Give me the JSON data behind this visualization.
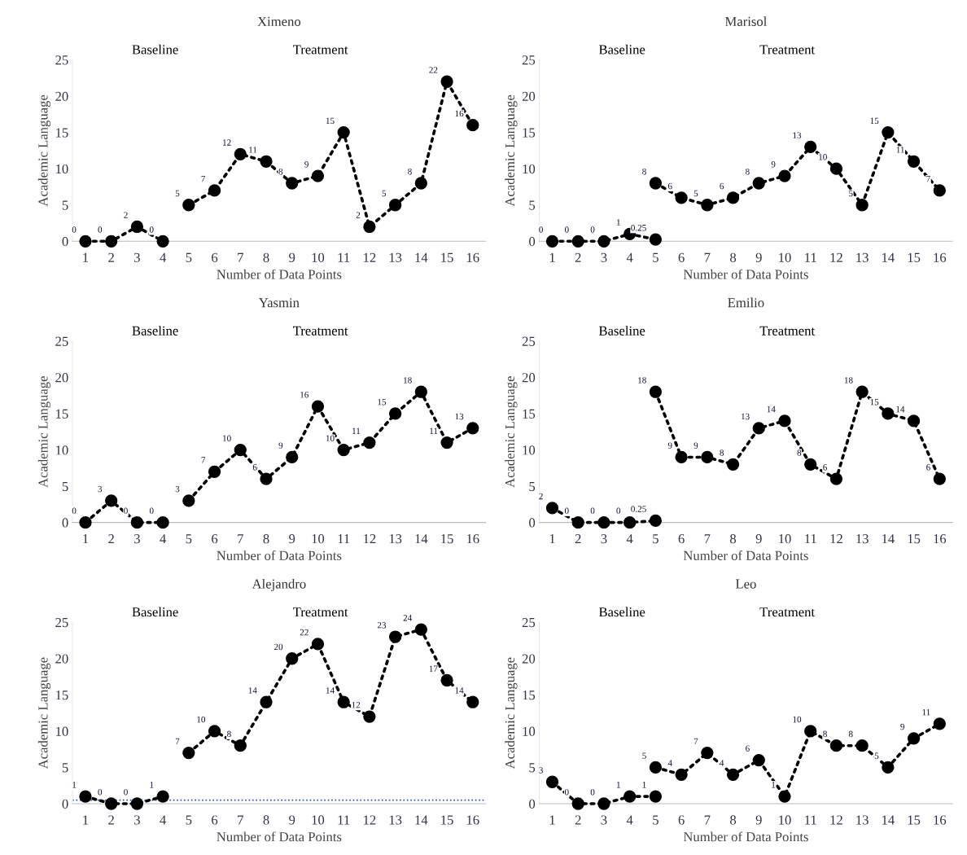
{
  "chart_data": [
    {
      "type": "line",
      "title": "Ximeno",
      "xlabel": "Number of Data Points",
      "ylabel": "Academic Language",
      "xlim": [
        0.5,
        16.5
      ],
      "xticks": [
        1,
        2,
        3,
        4,
        5,
        6,
        7,
        8,
        9,
        10,
        11,
        12,
        13,
        14,
        15,
        16
      ],
      "ylim": [
        0,
        25
      ],
      "yticks": [
        0,
        5,
        10,
        15,
        20,
        25
      ],
      "grid": false,
      "marker": "circle",
      "line_style": "dotted",
      "annotations": [
        "Baseline",
        "Treatment"
      ],
      "series": [
        {
          "color": "#000000",
          "x": [
            1,
            2,
            3,
            4
          ],
          "values": [
            0,
            0,
            2,
            0
          ],
          "value_labels": [
            "0",
            "0",
            "2",
            "0"
          ]
        },
        {
          "color": "#000000",
          "x": [
            5,
            6,
            7,
            8,
            9,
            10,
            11,
            12,
            13,
            14,
            15,
            16
          ],
          "values": [
            5,
            7,
            12,
            11,
            8,
            9,
            15,
            2,
            5,
            8,
            22,
            16
          ],
          "value_labels": [
            "5",
            "7",
            "12",
            "11",
            "8",
            "9",
            "15",
            "2",
            "5",
            "8",
            "22",
            "16"
          ]
        }
      ]
    },
    {
      "type": "line",
      "title": "Marisol",
      "xlabel": "Number of Data Points",
      "ylabel": "Academic Language",
      "xlim": [
        0.5,
        16.5
      ],
      "xticks": [
        1,
        2,
        3,
        4,
        5,
        6,
        7,
        8,
        9,
        10,
        11,
        12,
        13,
        14,
        15,
        16
      ],
      "ylim": [
        0,
        25
      ],
      "yticks": [
        0,
        5,
        10,
        15,
        20,
        25
      ],
      "grid": false,
      "marker": "circle",
      "line_style": "dotted",
      "annotations": [
        "Baseline",
        "Treatment"
      ],
      "series": [
        {
          "color": "#000000",
          "x": [
            1,
            2,
            3,
            4,
            5
          ],
          "values": [
            0,
            0,
            0,
            1,
            0.25
          ],
          "value_labels": [
            "0",
            "0",
            "0",
            "1",
            "0.25"
          ]
        },
        {
          "color": "#000000",
          "x": [
            5,
            6,
            7,
            8,
            9,
            10,
            11,
            12,
            13,
            14,
            15,
            16
          ],
          "values": [
            8,
            6,
            5,
            6,
            8,
            9,
            13,
            10,
            5,
            15,
            11,
            7
          ],
          "value_labels": [
            "8",
            "6",
            "5",
            "6",
            "8",
            "9",
            "13",
            "10",
            "5",
            "15",
            "11",
            "7"
          ]
        }
      ]
    },
    {
      "type": "line",
      "title": "Yasmin",
      "xlabel": "Number of Data Points",
      "ylabel": "Academic Language",
      "xlim": [
        0.5,
        16.5
      ],
      "xticks": [
        1,
        2,
        3,
        4,
        5,
        6,
        7,
        8,
        9,
        10,
        11,
        12,
        13,
        14,
        15,
        16
      ],
      "ylim": [
        0,
        25
      ],
      "yticks": [
        0,
        5,
        10,
        15,
        20,
        25
      ],
      "grid": false,
      "marker": "circle",
      "line_style": "dotted",
      "annotations": [
        "Baseline",
        "Treatment"
      ],
      "series": [
        {
          "color": "#000000",
          "x": [
            1,
            2,
            3,
            4
          ],
          "values": [
            0,
            3,
            0,
            0
          ],
          "value_labels": [
            "0",
            "3",
            "0",
            "0"
          ]
        },
        {
          "color": "#000000",
          "x": [
            5,
            6,
            7,
            8,
            9,
            10,
            11,
            12,
            13,
            14,
            15,
            16
          ],
          "values": [
            3,
            7,
            10,
            6,
            9,
            16,
            10,
            11,
            15,
            18,
            11,
            13
          ],
          "value_labels": [
            "3",
            "7",
            "10",
            "6",
            "9",
            "16",
            "10",
            "11",
            "15",
            "18",
            "11",
            "13"
          ]
        }
      ]
    },
    {
      "type": "line",
      "title": "Emilio",
      "xlabel": "Number of Data Points",
      "ylabel": "Academic Language",
      "xlim": [
        0.5,
        16.5
      ],
      "xticks": [
        1,
        2,
        3,
        4,
        5,
        6,
        7,
        8,
        9,
        10,
        11,
        12,
        13,
        14,
        15,
        16
      ],
      "ylim": [
        0,
        25
      ],
      "yticks": [
        0,
        5,
        10,
        15,
        20,
        25
      ],
      "grid": false,
      "marker": "circle",
      "line_style": "dotted",
      "annotations": [
        "Baseline",
        "Treatment"
      ],
      "series": [
        {
          "color": "#000000",
          "x": [
            1,
            2,
            3,
            4,
            5
          ],
          "values": [
            2,
            0,
            0,
            0,
            0.25
          ],
          "value_labels": [
            "2",
            "0",
            "0",
            "0",
            "0.25"
          ]
        },
        {
          "color": "#000000",
          "x": [
            5,
            6,
            7,
            8,
            9,
            10,
            11,
            12,
            13,
            14,
            15,
            16
          ],
          "values": [
            18,
            9,
            9,
            8,
            13,
            14,
            8,
            6,
            18,
            15,
            14,
            6
          ],
          "value_labels": [
            "18",
            "9",
            "9",
            "8",
            "13",
            "14",
            "8",
            "6",
            "18",
            "15",
            "14",
            "6"
          ]
        }
      ]
    },
    {
      "type": "line",
      "title": "Alejandro",
      "xlabel": "Number of Data Points",
      "ylabel": "Academic Language",
      "xlim": [
        0.5,
        16.5
      ],
      "xticks": [
        1,
        2,
        3,
        4,
        5,
        6,
        7,
        8,
        9,
        10,
        11,
        12,
        13,
        14,
        15,
        16
      ],
      "ylim": [
        0,
        25
      ],
      "yticks": [
        0,
        5,
        10,
        15,
        20,
        25
      ],
      "grid": false,
      "marker": "circle",
      "line_style": "dotted",
      "annotations": [
        "Baseline",
        "Treatment"
      ],
      "ref_lines": [
        {
          "axis": "y",
          "value": 0.5,
          "color": "#2f4fb0",
          "line_style": "dotted"
        }
      ],
      "series": [
        {
          "color": "#000000",
          "x": [
            1,
            2,
            3,
            4
          ],
          "values": [
            1,
            0,
            0,
            1
          ],
          "value_labels": [
            "1",
            "0",
            "0",
            "1"
          ]
        },
        {
          "color": "#000000",
          "x": [
            5,
            6,
            7,
            8,
            9,
            10,
            11,
            12,
            13,
            14,
            15,
            16
          ],
          "values": [
            7,
            10,
            8,
            14,
            20,
            22,
            14,
            12,
            23,
            24,
            17,
            14
          ],
          "value_labels": [
            "7",
            "10",
            "8",
            "14",
            "20",
            "22",
            "14",
            "12",
            "23",
            "24",
            "17",
            "14"
          ]
        }
      ]
    },
    {
      "type": "line",
      "title": "Leo",
      "xlabel": "Number of Data Points",
      "ylabel": "Academic Language",
      "xlim": [
        0.5,
        16.5
      ],
      "xticks": [
        1,
        2,
        3,
        4,
        5,
        6,
        7,
        8,
        9,
        10,
        11,
        12,
        13,
        14,
        15,
        16
      ],
      "ylim": [
        0,
        25
      ],
      "yticks": [
        0,
        5,
        10,
        15,
        20,
        25
      ],
      "grid": false,
      "marker": "circle",
      "line_style": "dotted",
      "annotations": [
        "Baseline",
        "Treatment"
      ],
      "series": [
        {
          "color": "#000000",
          "x": [
            1,
            2,
            3,
            4,
            5
          ],
          "values": [
            3,
            0,
            0,
            1,
            1
          ],
          "value_labels": [
            "3",
            "0",
            "0",
            "1",
            "1"
          ]
        },
        {
          "color": "#000000",
          "x": [
            5,
            6,
            7,
            8,
            9,
            10,
            11,
            12,
            13,
            14,
            15,
            16
          ],
          "values": [
            5,
            4,
            7,
            4,
            6,
            1,
            10,
            8,
            8,
            5,
            9,
            11
          ],
          "value_labels": [
            "5",
            "4",
            "7",
            "4",
            "6",
            "1",
            "10",
            "8",
            "8",
            "5",
            "9",
            "11"
          ]
        }
      ]
    }
  ]
}
